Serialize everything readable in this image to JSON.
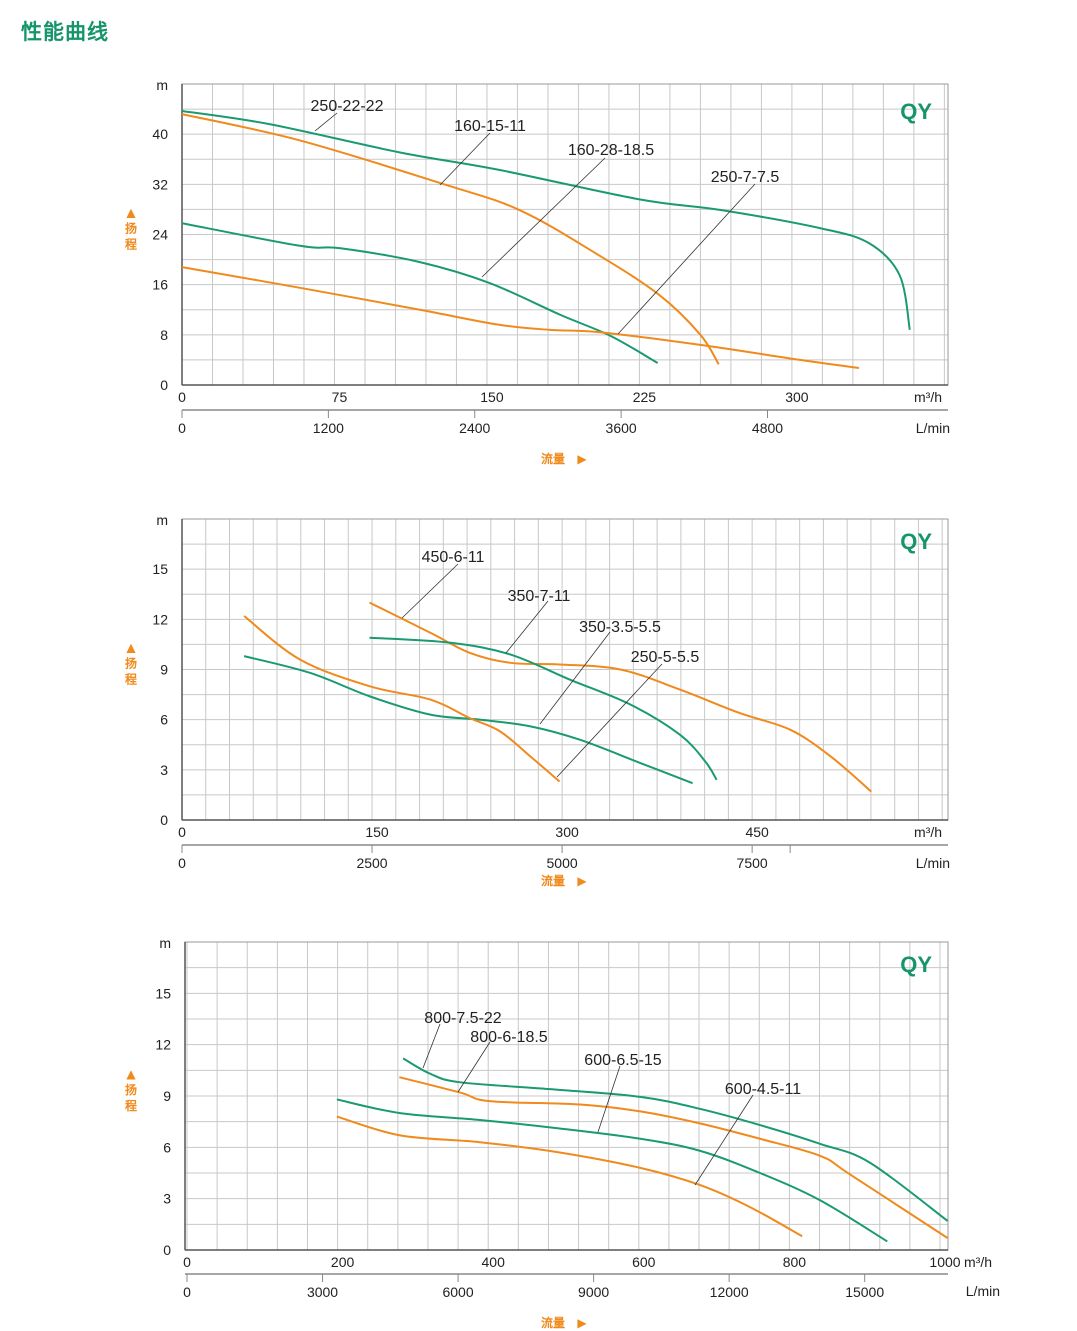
{
  "page_title": "性能曲线",
  "colors": {
    "green": "#1a9a72",
    "orange": "#f08a1c",
    "grid": "#c8c8c8"
  },
  "chart_data": [
    {
      "type": "line",
      "brand": "QY",
      "ylabel": "扬程",
      "yunit": "m",
      "xlabel": "流量",
      "xunit": "m³/h",
      "x2unit": "L/min",
      "xlim": [
        0,
        377
      ],
      "ylim": [
        0,
        48
      ],
      "x_ticks": [
        0,
        75,
        150,
        225,
        300
      ],
      "x2_ticks": [
        0,
        1200,
        2400,
        3600,
        4800
      ],
      "y_ticks": [
        0,
        8,
        16,
        24,
        32,
        40
      ],
      "grid": true,
      "series": [
        {
          "name": "250-22-22",
          "color": "green",
          "points": [
            [
              0,
              43.7
            ],
            [
              43,
              41.6
            ],
            [
              107,
              37.1
            ],
            [
              156,
              34.3
            ],
            [
              225,
              29.6
            ],
            [
              265,
              27.9
            ],
            [
              314,
              25
            ],
            [
              338,
              22.6
            ],
            [
              353,
              17.5
            ],
            [
              358,
              8.8
            ]
          ]
        },
        {
          "name": "160-15-11",
          "color": "orange",
          "points": [
            [
              0,
              43.2
            ],
            [
              58,
              39
            ],
            [
              127,
              32.2
            ],
            [
              166,
              27.9
            ],
            [
              205,
              20.7
            ],
            [
              235,
              14.3
            ],
            [
              255,
              8
            ],
            [
              264,
              3.3
            ]
          ]
        },
        {
          "name": "160-28-18.5",
          "color": "green",
          "points": [
            [
              0,
              25.8
            ],
            [
              58,
              22.2
            ],
            [
              78,
              21.8
            ],
            [
              117,
              19.6
            ],
            [
              151,
              16.3
            ],
            [
              186,
              11.2
            ],
            [
              211,
              7.8
            ],
            [
              234,
              3.5
            ]
          ]
        },
        {
          "name": "250-7-7.5",
          "color": "orange",
          "points": [
            [
              0,
              18.8
            ],
            [
              58,
              15.5
            ],
            [
              117,
              12
            ],
            [
              156,
              9.6
            ],
            [
              181,
              8.8
            ],
            [
              206,
              8.4
            ],
            [
              255,
              6.4
            ],
            [
              304,
              4
            ],
            [
              333,
              2.7
            ]
          ]
        }
      ]
    },
    {
      "type": "line",
      "brand": "QY",
      "ylabel": "扬程",
      "yunit": "m",
      "xlabel": "流量",
      "xunit": "m³/h",
      "x2unit": "L/min",
      "xlim": [
        0,
        605
      ],
      "ylim": [
        0,
        18
      ],
      "x_ticks": [
        0,
        150,
        300,
        450
      ],
      "x2_ticks": [
        0,
        2500,
        5000,
        7500
      ],
      "y_ticks": [
        0,
        3,
        6,
        9,
        12,
        15
      ],
      "grid": true,
      "series": [
        {
          "name": "450-6-11",
          "color": "orange",
          "points": [
            [
              148,
              13.0
            ],
            [
              196,
              11.2
            ],
            [
              227,
              10.0
            ],
            [
              259,
              9.4
            ],
            [
              298,
              9.3
            ],
            [
              346,
              9.0
            ],
            [
              393,
              7.8
            ],
            [
              440,
              6.4
            ],
            [
              480,
              5.4
            ],
            [
              512,
              3.8
            ],
            [
              544,
              1.7
            ]
          ]
        },
        {
          "name": "350-7-11",
          "color": "green",
          "points": [
            [
              148,
              10.9
            ],
            [
              212,
              10.6
            ],
            [
              259,
              9.9
            ],
            [
              306,
              8.4
            ],
            [
              354,
              6.9
            ],
            [
              393,
              5.1
            ],
            [
              413,
              3.5
            ],
            [
              422,
              2.4
            ]
          ]
        },
        {
          "name": "350-3.5-5.5",
          "color": "green",
          "points": [
            [
              49,
              9.8
            ],
            [
              101,
              8.8
            ],
            [
              148,
              7.4
            ],
            [
              196,
              6.3
            ],
            [
              235,
              6.0
            ],
            [
              275,
              5.6
            ],
            [
              314,
              4.8
            ],
            [
              362,
              3.4
            ],
            [
              403,
              2.2
            ]
          ]
        },
        {
          "name": "250-5-5.5",
          "color": "orange",
          "points": [
            [
              49,
              12.2
            ],
            [
              93,
              9.6
            ],
            [
              148,
              8.0
            ],
            [
              196,
              7.2
            ],
            [
              227,
              6.1
            ],
            [
              251,
              5.3
            ],
            [
              275,
              3.8
            ],
            [
              298,
              2.3
            ]
          ]
        }
      ]
    },
    {
      "type": "line",
      "brand": "QY",
      "ylabel": "扬程",
      "yunit": "m",
      "xlabel": "流量",
      "xunit": "m³/h",
      "x2unit": "L/min",
      "xlim": [
        0,
        1013
      ],
      "ylim": [
        0,
        18
      ],
      "x_ticks": [
        0,
        200,
        400,
        600,
        800,
        1000
      ],
      "x2_ticks": [
        0,
        3000,
        6000,
        9000,
        12000,
        15000
      ],
      "y_ticks": [
        0,
        3,
        6,
        9,
        12,
        15
      ],
      "grid": true,
      "series": [
        {
          "name": "800-7.5-22",
          "color": "green",
          "points": [
            [
              287,
              11.2
            ],
            [
              323,
              10.3
            ],
            [
              363,
              9.8
            ],
            [
              482,
              9.4
            ],
            [
              602,
              8.95
            ],
            [
              681,
              8.25
            ],
            [
              761,
              7.3
            ],
            [
              841,
              6.2
            ],
            [
              907,
              5.1
            ],
            [
              1010,
              1.7
            ]
          ]
        },
        {
          "name": "800-6-18.5",
          "color": "orange",
          "points": [
            [
              282,
              10.1
            ],
            [
              363,
              9.2
            ],
            [
              402,
              8.7
            ],
            [
              522,
              8.5
            ],
            [
              602,
              8.1
            ],
            [
              681,
              7.4
            ],
            [
              761,
              6.5
            ],
            [
              841,
              5.5
            ],
            [
              881,
              4.4
            ],
            [
              1010,
              0.7
            ]
          ]
        },
        {
          "name": "600-6.5-15",
          "color": "green",
          "points": [
            [
              199,
              8.8
            ],
            [
              283,
              8.0
            ],
            [
              389,
              7.6
            ],
            [
              495,
              7.1
            ],
            [
              602,
              6.5
            ],
            [
              681,
              5.8
            ],
            [
              761,
              4.5
            ],
            [
              841,
              2.9
            ],
            [
              930,
              0.5
            ]
          ]
        },
        {
          "name": "600-4.5-11",
          "color": "orange",
          "points": [
            [
              199,
              7.8
            ],
            [
              283,
              6.7
            ],
            [
              389,
              6.3
            ],
            [
              495,
              5.7
            ],
            [
              602,
              4.8
            ],
            [
              681,
              3.8
            ],
            [
              748,
              2.5
            ],
            [
              817,
              0.8
            ]
          ]
        }
      ]
    }
  ]
}
